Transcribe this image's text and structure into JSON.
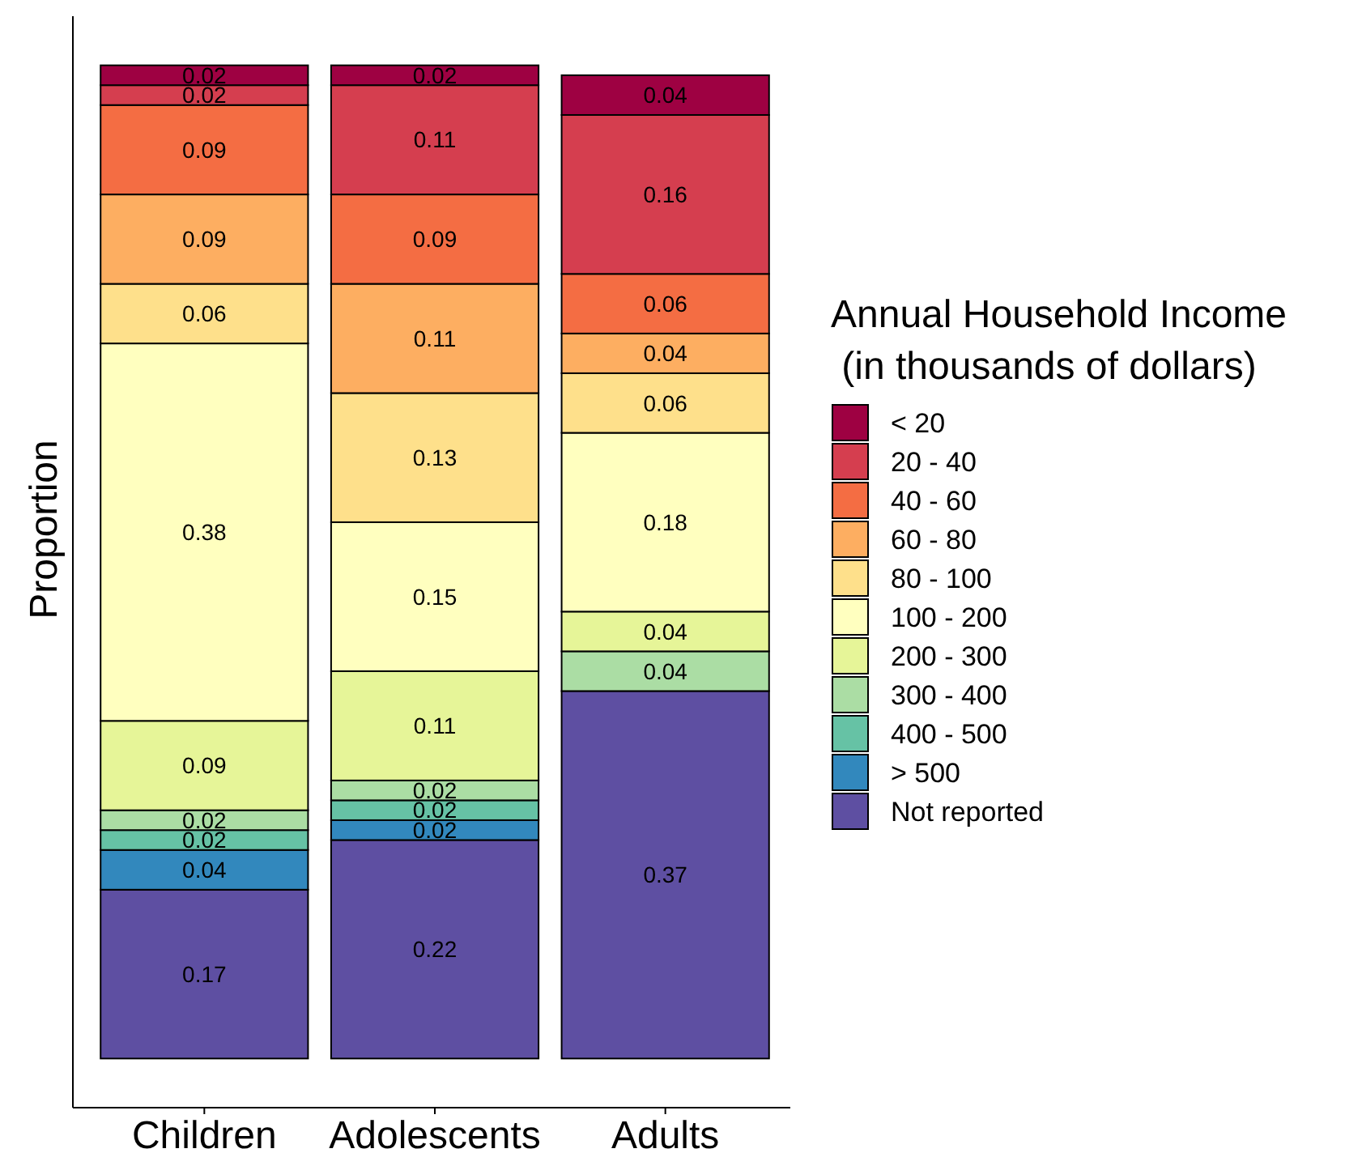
{
  "chart_data": {
    "type": "bar",
    "stacked": true,
    "ylabel": "Proportion",
    "legend_title": "Annual Household Income\n(in thousands of dollars)",
    "legend": "right",
    "grid": false,
    "tick_labels": "x",
    "data_labels": true,
    "categories": [
      "Children",
      "Adolescents",
      "Adults"
    ],
    "series": [
      {
        "name": "Not reported",
        "color": "#5e4fa2",
        "values": [
          0.17,
          0.22,
          0.37
        ]
      },
      {
        "name": "> 500",
        "color": "#3288bd",
        "values": [
          0.04,
          0.02,
          null
        ]
      },
      {
        "name": "400 - 500",
        "color": "#66c2a5",
        "values": [
          0.02,
          0.02,
          null
        ]
      },
      {
        "name": "300 - 400",
        "color": "#abdda4",
        "values": [
          0.02,
          0.02,
          0.04
        ]
      },
      {
        "name": "200 - 300",
        "color": "#e6f598",
        "values": [
          0.09,
          0.11,
          0.04
        ]
      },
      {
        "name": "100 - 200",
        "color": "#ffffbf",
        "values": [
          0.38,
          0.15,
          0.18
        ]
      },
      {
        "name": "80 - 100",
        "color": "#fee08b",
        "values": [
          0.06,
          0.13,
          0.06
        ]
      },
      {
        "name": "60 - 80",
        "color": "#fdae61",
        "values": [
          0.09,
          0.11,
          0.04
        ]
      },
      {
        "name": "40 - 60",
        "color": "#f46d43",
        "values": [
          0.09,
          0.09,
          0.06
        ]
      },
      {
        "name": "20 - 40",
        "color": "#d53e4f",
        "values": [
          0.02,
          0.11,
          0.16
        ]
      },
      {
        "name": "< 20",
        "color": "#9e0142",
        "values": [
          0.02,
          0.02,
          0.04
        ]
      }
    ]
  }
}
